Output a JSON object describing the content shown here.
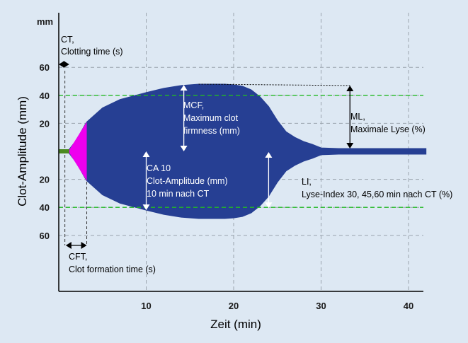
{
  "chart_data": {
    "type": "area",
    "xlabel": "Zeit (min)",
    "ylabel": "Clot-Amplitude (mm)",
    "y_unit": "mm",
    "xlim": [
      0,
      42
    ],
    "ylim": [
      -80,
      80
    ],
    "x_ticks": [
      10,
      20,
      30,
      40
    ],
    "y_ticks_upper": [
      60,
      40,
      20
    ],
    "y_ticks_lower": [
      20,
      40,
      60
    ],
    "colors": {
      "trace": "#263f93",
      "cft_segment": "#ee00ee",
      "ct_segment": "#4a8a20",
      "reference_line": "#22bb22",
      "grid": "#9aa3ad",
      "background": "#dde8f3",
      "marker": "#ffffff"
    },
    "amplitude_profile": {
      "x": [
        0,
        0.8,
        1.2,
        2,
        3,
        3.2,
        5,
        7,
        10,
        12,
        14,
        16,
        18,
        19,
        20,
        21,
        22,
        23,
        24,
        25,
        26,
        27,
        28,
        29,
        30,
        32,
        35,
        38,
        42
      ],
      "y": [
        0,
        0,
        1.5,
        8,
        19,
        21,
        31,
        37,
        42,
        45,
        47,
        48,
        48,
        48,
        47.5,
        46.5,
        44,
        39,
        32,
        22,
        14,
        10,
        7,
        5,
        2.5,
        2,
        2,
        2,
        2
      ]
    },
    "reference_lines": [
      {
        "y": 40,
        "style": "dashed-green"
      },
      {
        "y": -40,
        "style": "dashed-green"
      }
    ],
    "annotations": {
      "ct": [
        "CT,",
        "Clotting time (s)"
      ],
      "cft": [
        "CFT,",
        "Clot formation time (s)"
      ],
      "mcf": [
        "MCF,",
        "Maximum clot",
        "firmness (mm)"
      ],
      "ca10": [
        "CA 10",
        "Clot-Amplitude (mm)",
        "10 min nach CT"
      ],
      "ml": [
        "ML,",
        "Maximale Lyse (%)"
      ],
      "li": [
        "LI,",
        "Lyse-Index 30, 45,60 min nach CT (%)"
      ]
    },
    "markers": {
      "ct_end_min": 0.8,
      "cft_start_min": 1.2,
      "cft_end_min": 3.2,
      "mcf_at_min": 14.3,
      "ca10_at_min": 10,
      "li_at_min": 24,
      "ml_at_min": 33.3
    }
  }
}
